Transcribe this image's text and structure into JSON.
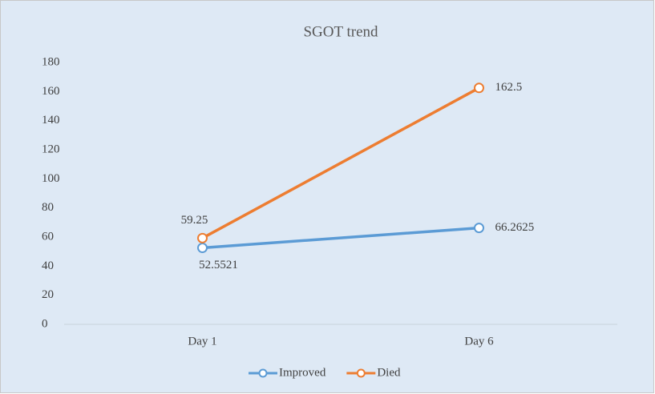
{
  "chart_data": {
    "type": "line",
    "title": "SGOT trend",
    "categories": [
      "Day 1",
      "Day 6"
    ],
    "series": [
      {
        "name": "Improved",
        "color": "#5b9bd5",
        "values": [
          52.5521,
          66.2625
        ]
      },
      {
        "name": "Died",
        "color": "#ed7d31",
        "values": [
          59.25,
          162.5
        ]
      }
    ],
    "ylim": [
      0,
      180
    ],
    "yticks": [
      0,
      20,
      40,
      60,
      80,
      100,
      120,
      140,
      160,
      180
    ],
    "grid": false,
    "legend": "bottom"
  }
}
